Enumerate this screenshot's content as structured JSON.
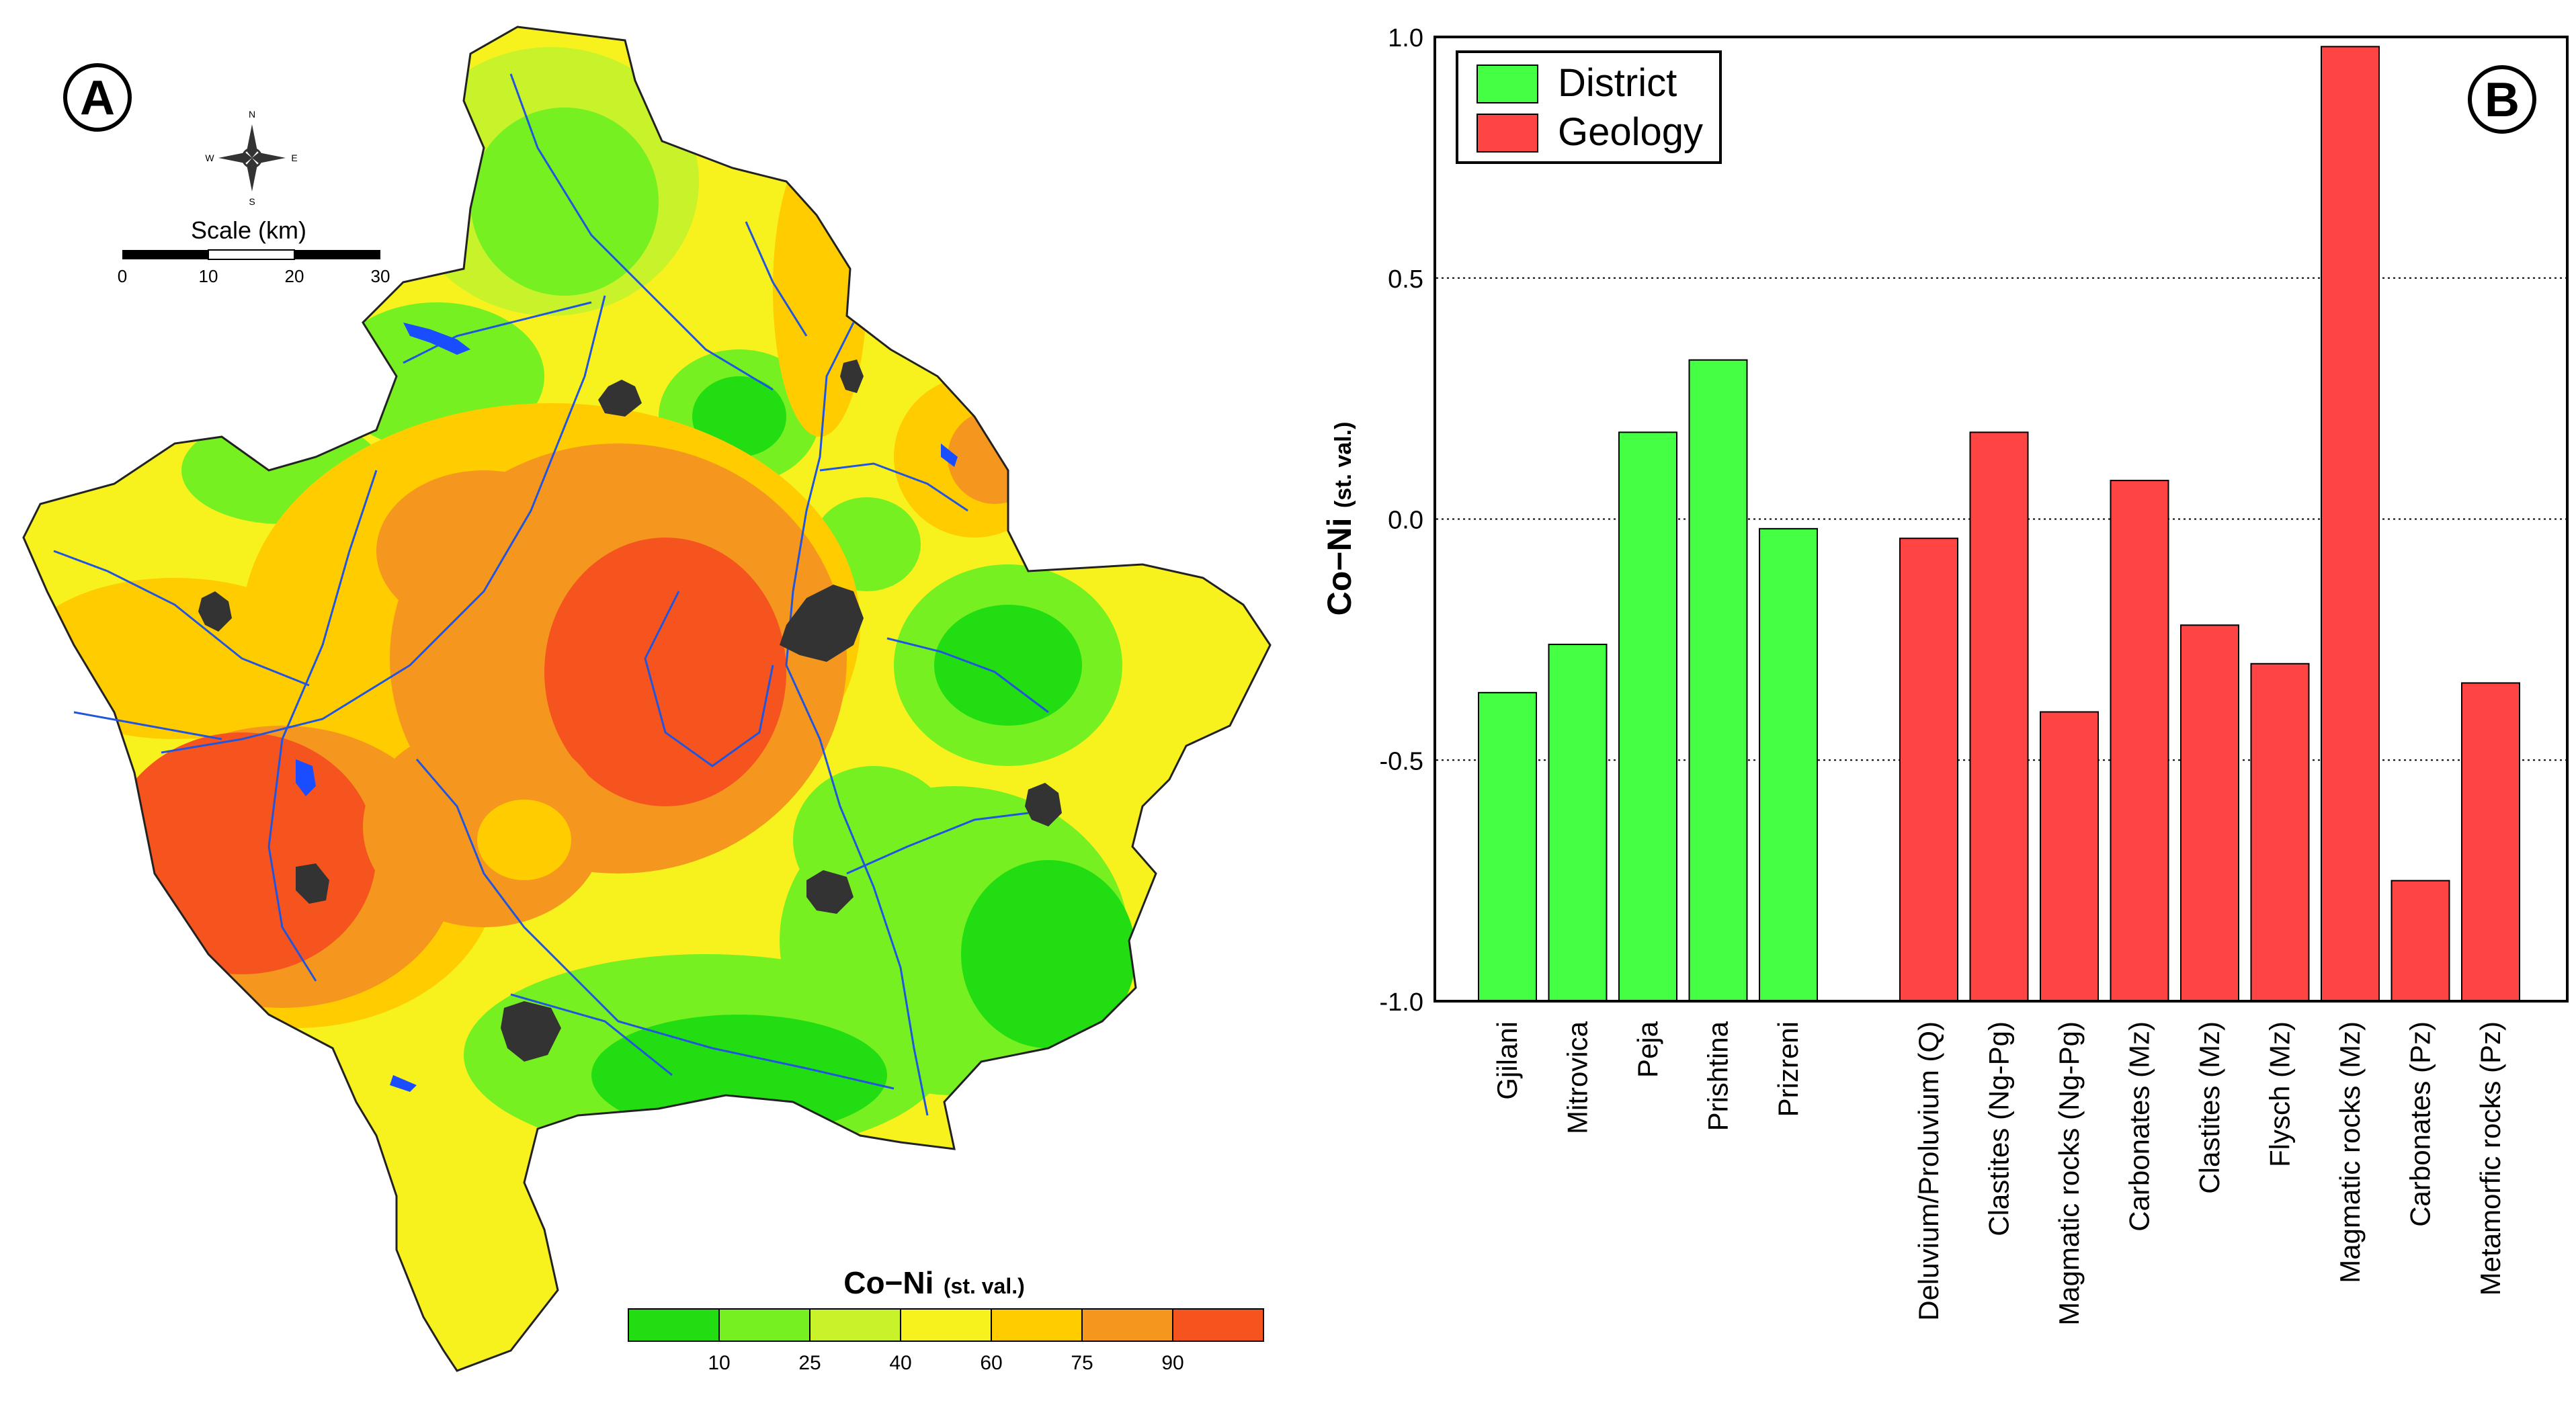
{
  "panel_a": {
    "label": "A",
    "compass": {
      "n": "N",
      "s": "S",
      "e": "E",
      "w": "W"
    },
    "scale": {
      "title": "Scale (km)",
      "ticks": [
        "0",
        "10",
        "20",
        "30"
      ]
    },
    "legend": {
      "title_main": "Co−Ni",
      "title_sub": "(st. val.)",
      "colors": [
        "#22dd11",
        "#77f022",
        "#c8f22a",
        "#f7f21e",
        "#ffcc00",
        "#f5961e",
        "#f5541e"
      ],
      "ticks": [
        "10",
        "25",
        "40",
        "60",
        "75",
        "90"
      ]
    },
    "colors": {
      "water": "#1a4dff",
      "urban": "#333333",
      "river": "#2255dd"
    }
  },
  "chart_data": {
    "type": "bar",
    "panel_label": "B",
    "title": "",
    "xlabel": "",
    "ylabel": "Co−Ni",
    "ylabel_sub": "(st. val.)",
    "ylim": [
      -1.0,
      1.0
    ],
    "yticks": [
      "1.0",
      "0.5",
      "0.0",
      "-0.5",
      "-1.0"
    ],
    "grid": "horizontal dotted",
    "legend_position": "top-left",
    "series": [
      {
        "name": "District",
        "color": "#44ff44",
        "categories": [
          "Gjilani",
          "Mitrovica",
          "Peja",
          "Prishtina",
          "Prizreni"
        ],
        "values": [
          -0.36,
          -0.26,
          0.18,
          0.33,
          -0.02
        ]
      },
      {
        "name": "Geology",
        "color": "#ff4444",
        "categories": [
          "Deluvium/Proluvium (Q)",
          "Clastites (Ng-Pg)",
          "Magmatic rocks (Ng-Pg)",
          "Carbonates (Mz)",
          "Clastites (Mz)",
          "Flysch (Mz)",
          "Magmatic rocks (Mz)",
          "Carbonates (Pz)",
          "Metamorfic rocks (Pz)"
        ],
        "values": [
          -0.04,
          0.18,
          -0.4,
          0.08,
          -0.22,
          -0.3,
          0.98,
          -0.75,
          -0.34
        ]
      }
    ]
  }
}
